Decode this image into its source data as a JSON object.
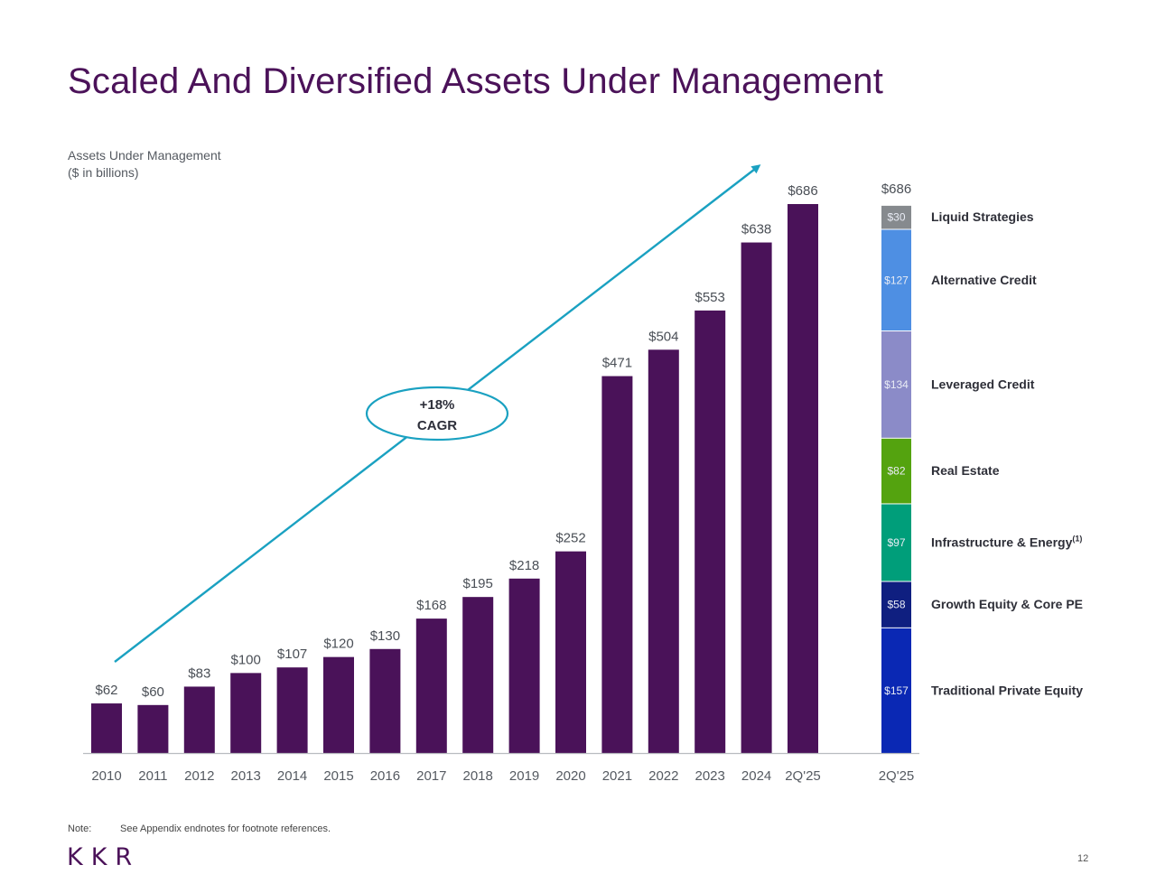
{
  "page": {
    "title": "Scaled And Diversified Assets Under Management",
    "subtitle_line1": "Assets Under Management",
    "subtitle_line2": "($ in billions)",
    "note_label": "Note:",
    "note_text": "See Appendix endnotes for footnote references.",
    "logo": "KKR",
    "page_number": "12"
  },
  "colors": {
    "bar": "#4A1259",
    "arrow": "#1AA1C1",
    "axis_text": "#555a61",
    "title": "#4B1259"
  },
  "chart_data": [
    {
      "type": "bar",
      "title": "Assets Under Management ($ in billions)",
      "categories": [
        "2010",
        "2011",
        "2012",
        "2013",
        "2014",
        "2015",
        "2016",
        "2017",
        "2018",
        "2019",
        "2020",
        "2021",
        "2022",
        "2023",
        "2024",
        "2Q'25"
      ],
      "values": [
        62,
        60,
        83,
        100,
        107,
        120,
        130,
        168,
        195,
        218,
        252,
        471,
        504,
        553,
        638,
        686
      ],
      "labels": [
        "$62",
        "$60",
        "$83",
        "$100",
        "$107",
        "$120",
        "$130",
        "$168",
        "$195",
        "$218",
        "$252",
        "$471",
        "$504",
        "$553",
        "$638",
        "$686"
      ],
      "ylim": [
        0,
        700
      ],
      "annotation": {
        "line1": "+18%",
        "line2": "CAGR",
        "kind": "trend-arrow"
      }
    },
    {
      "type": "bar",
      "stacked": true,
      "category": "2Q'25",
      "total_label": "$686",
      "total": 686,
      "segments": [
        {
          "name": "Traditional Private Equity",
          "value": 157,
          "label": "$157",
          "color": "#0A28B4"
        },
        {
          "name": "Growth Equity & Core PE",
          "value": 58,
          "label": "$58",
          "color": "#0F1F80"
        },
        {
          "name": "Infrastructure & Energy",
          "footnote": "(1)",
          "value": 97,
          "label": "$97",
          "color": "#009E7A"
        },
        {
          "name": "Real Estate",
          "value": 82,
          "label": "$82",
          "color": "#54A30F"
        },
        {
          "name": "Leveraged Credit",
          "value": 134,
          "label": "$134",
          "color": "#8B8BC8"
        },
        {
          "name": "Alternative Credit",
          "value": 127,
          "label": "$127",
          "color": "#4E8FE3"
        },
        {
          "name": "Liquid Strategies",
          "value": 30,
          "label": "$30",
          "color": "#868A8E"
        }
      ]
    }
  ]
}
